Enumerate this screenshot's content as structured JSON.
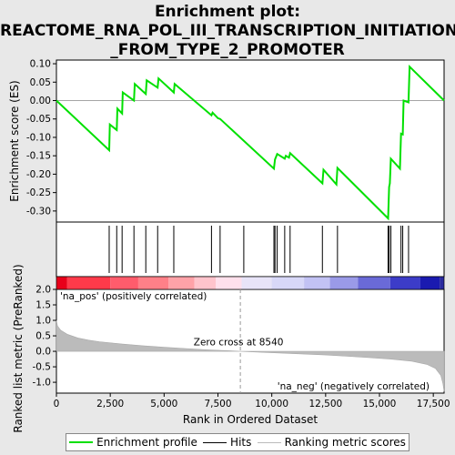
{
  "title_lines": [
    "Enrichment plot:",
    "REACTOME_RNA_POL_III_TRANSCRIPTION_INITIATION",
    "_FROM_TYPE_2_PROMOTER"
  ],
  "colors": {
    "es_line": "#00e000",
    "hits": "#000000",
    "metric": "#bbbbbb",
    "pos_label": "#cc0000",
    "neg_label": "#0000cc",
    "zero_line": "#999999"
  },
  "legend": {
    "es": "Enrichment profile",
    "hits": "Hits",
    "metric": "Ranking metric scores"
  },
  "chart_data": {
    "type": "line",
    "n_genes": 18000,
    "es_panel": {
      "ylabel": "Enrichment score (ES)",
      "ylim": [
        -0.33,
        0.11
      ],
      "yticks": [
        "0.10",
        "0.05",
        "0.00",
        "-0.05",
        "-0.10",
        "-0.15",
        "-0.20",
        "-0.25",
        "-0.30"
      ],
      "ytick_values": [
        0.1,
        0.05,
        0.0,
        -0.05,
        -0.1,
        -0.15,
        -0.2,
        -0.25,
        -0.3
      ],
      "points": [
        [
          0,
          0.0
        ],
        [
          2450,
          -0.135
        ],
        [
          2480,
          -0.065
        ],
        [
          2800,
          -0.08
        ],
        [
          2830,
          -0.022
        ],
        [
          3050,
          -0.035
        ],
        [
          3080,
          0.022
        ],
        [
          3600,
          0.0
        ],
        [
          3640,
          0.045
        ],
        [
          4150,
          0.018
        ],
        [
          4190,
          0.055
        ],
        [
          4700,
          0.035
        ],
        [
          4740,
          0.06
        ],
        [
          5450,
          0.022
        ],
        [
          5490,
          0.045
        ],
        [
          7200,
          -0.04
        ],
        [
          7250,
          -0.033
        ],
        [
          7500,
          -0.048
        ],
        [
          7600,
          -0.05
        ],
        [
          10100,
          -0.185
        ],
        [
          10150,
          -0.16
        ],
        [
          10250,
          -0.145
        ],
        [
          10600,
          -0.158
        ],
        [
          10650,
          -0.15
        ],
        [
          10800,
          -0.155
        ],
        [
          10850,
          -0.143
        ],
        [
          12350,
          -0.225
        ],
        [
          12400,
          -0.188
        ],
        [
          13000,
          -0.228
        ],
        [
          13050,
          -0.183
        ],
        [
          15400,
          -0.32
        ],
        [
          15450,
          -0.235
        ],
        [
          15480,
          -0.225
        ],
        [
          15530,
          -0.158
        ],
        [
          15950,
          -0.185
        ],
        [
          16000,
          -0.09
        ],
        [
          16080,
          -0.092
        ],
        [
          16120,
          0.0
        ],
        [
          16350,
          -0.005
        ],
        [
          16400,
          0.092
        ],
        [
          18000,
          0.0
        ]
      ]
    },
    "hits": [
      2450,
      2800,
      3050,
      3600,
      4150,
      4700,
      5450,
      7200,
      7600,
      8700,
      10100,
      10150,
      10250,
      10600,
      10850,
      12350,
      13050,
      15400,
      15450,
      15530,
      16000,
      16080,
      16350
    ],
    "metric_panel": {
      "ylabel": "Ranked list metric (PreRanked)",
      "ylim": [
        -1.35,
        2.0
      ],
      "yticks": [
        "2.0",
        "1.5",
        "1.0",
        "0.5",
        "0.0",
        "-0.5",
        "-1.0"
      ],
      "ytick_values": [
        2.0,
        1.5,
        1.0,
        0.5,
        0.0,
        -0.5,
        -1.0
      ],
      "curve": [
        [
          0,
          1.0
        ],
        [
          50,
          0.82
        ],
        [
          200,
          0.68
        ],
        [
          500,
          0.55
        ],
        [
          1000,
          0.43
        ],
        [
          1500,
          0.36
        ],
        [
          2000,
          0.31
        ],
        [
          3000,
          0.24
        ],
        [
          4000,
          0.18
        ],
        [
          5000,
          0.13
        ],
        [
          6000,
          0.09
        ],
        [
          7000,
          0.05
        ],
        [
          8000,
          0.02
        ],
        [
          8540,
          0.0
        ],
        [
          9500,
          -0.03
        ],
        [
          10500,
          -0.06
        ],
        [
          11500,
          -0.09
        ],
        [
          12500,
          -0.12
        ],
        [
          13500,
          -0.16
        ],
        [
          14500,
          -0.2
        ],
        [
          15500,
          -0.25
        ],
        [
          16500,
          -0.32
        ],
        [
          17200,
          -0.42
        ],
        [
          17600,
          -0.55
        ],
        [
          17850,
          -0.78
        ],
        [
          17950,
          -1.05
        ],
        [
          18000,
          -1.3
        ]
      ],
      "zero_cross": 8540,
      "zero_cross_label": "Zero cross at 8540",
      "pos_label": "'na_pos' (positively correlated)",
      "neg_label": "'na_neg' (negatively correlated)"
    },
    "xaxis": {
      "xlabel": "Rank in Ordered Dataset",
      "xlim": [
        0,
        18000
      ],
      "xticks": [
        "0",
        "2,500",
        "5,000",
        "7,500",
        "10,000",
        "12,500",
        "15,000",
        "17,500"
      ],
      "xtick_values": [
        0,
        2500,
        5000,
        7500,
        10000,
        12500,
        15000,
        17500
      ]
    },
    "heatbar": {
      "segments": [
        {
          "to": 500,
          "color": "#e8001a"
        },
        {
          "to": 2500,
          "color": "#ff3a4a"
        },
        {
          "to": 3800,
          "color": "#ff5c6c"
        },
        {
          "to": 5200,
          "color": "#ff8088"
        },
        {
          "to": 6400,
          "color": "#ffa2a8"
        },
        {
          "to": 7400,
          "color": "#ffc4cc"
        },
        {
          "to": 8600,
          "color": "#ffe0ec"
        },
        {
          "to": 10000,
          "color": "#e8e4f8"
        },
        {
          "to": 11500,
          "color": "#d8d8f8"
        },
        {
          "to": 12700,
          "color": "#c2c2f4"
        },
        {
          "to": 14000,
          "color": "#9a9ae8"
        },
        {
          "to": 15500,
          "color": "#6a6ad8"
        },
        {
          "to": 16900,
          "color": "#3c3cc8"
        },
        {
          "to": 17800,
          "color": "#1a1ab0"
        },
        {
          "to": 18000,
          "color": "#2a2aa0"
        }
      ]
    }
  }
}
